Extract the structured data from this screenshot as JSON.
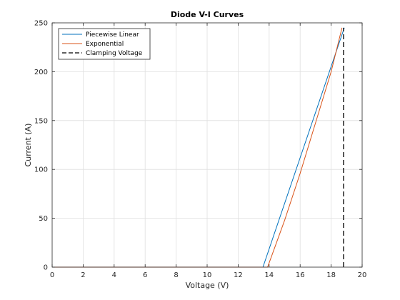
{
  "chart_data": {
    "type": "line",
    "title": "Diode V-I Curves",
    "xlabel": "Voltage (V)",
    "ylabel": "Current (A)",
    "xlim": [
      0,
      20
    ],
    "ylim": [
      0,
      250
    ],
    "xticks": [
      0,
      2,
      4,
      6,
      8,
      10,
      12,
      14,
      16,
      18,
      20
    ],
    "yticks": [
      0,
      50,
      100,
      150,
      200,
      250
    ],
    "grid": true,
    "legend_position": "top-left",
    "series": [
      {
        "name": "Piecewise Linear",
        "color": "#0072BD",
        "style": "solid",
        "x": [
          0,
          13.6,
          18.85
        ],
        "y": [
          0,
          0,
          245
        ]
      },
      {
        "name": "Exponential",
        "color": "#D95319",
        "style": "solid",
        "x": [
          0,
          13.9,
          15.0,
          16.0,
          17.0,
          18.0,
          18.7
        ],
        "y": [
          0,
          0,
          48,
          96,
          148,
          200,
          245
        ]
      },
      {
        "name": "Clamping Voltage",
        "color": "#000000",
        "style": "dashed",
        "x": [
          18.8,
          18.8
        ],
        "y": [
          0,
          245
        ]
      }
    ]
  }
}
